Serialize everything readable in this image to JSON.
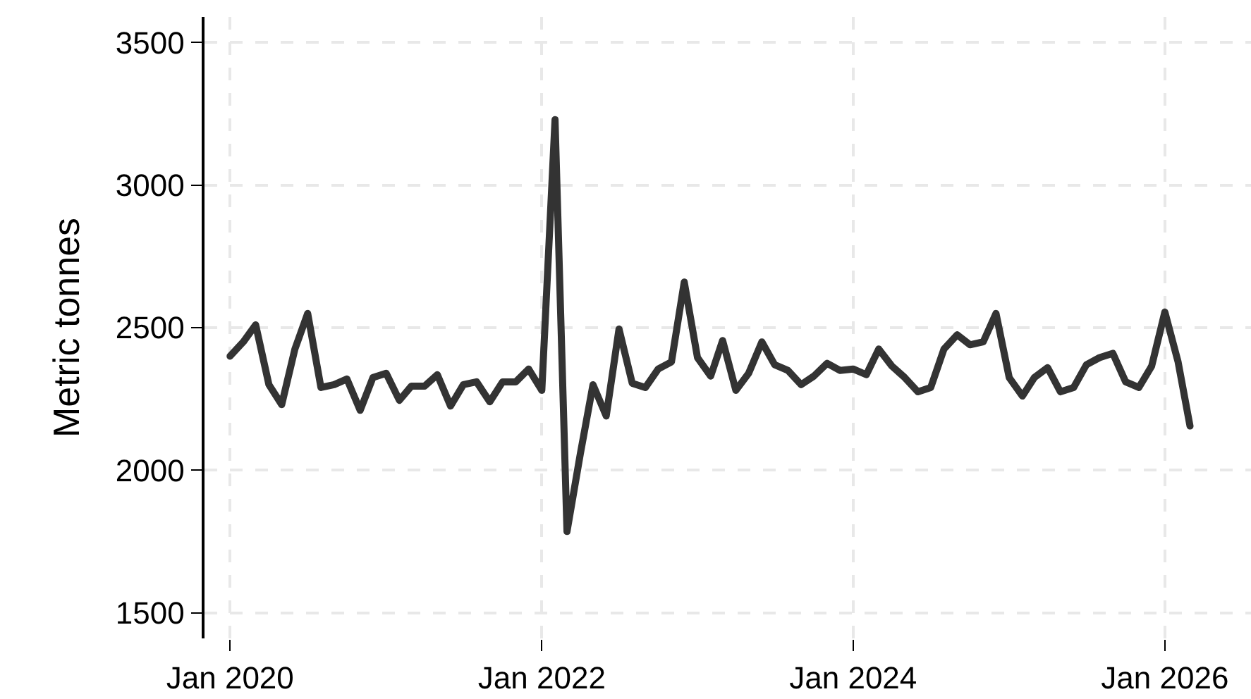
{
  "chart_data": {
    "type": "line",
    "ylabel": "Metric tonnes",
    "x": [
      "2020-01",
      "2020-02",
      "2020-03",
      "2020-04",
      "2020-05",
      "2020-06",
      "2020-07",
      "2020-08",
      "2020-09",
      "2020-10",
      "2020-11",
      "2020-12",
      "2021-01",
      "2021-02",
      "2021-03",
      "2021-04",
      "2021-05",
      "2021-06",
      "2021-07",
      "2021-08",
      "2021-09",
      "2021-10",
      "2021-11",
      "2021-12",
      "2022-01",
      "2022-02",
      "2022-03",
      "2022-04",
      "2022-05",
      "2022-06",
      "2022-07",
      "2022-08",
      "2022-09",
      "2022-10",
      "2022-11",
      "2022-12",
      "2023-01",
      "2023-02",
      "2023-03",
      "2023-04",
      "2023-05",
      "2023-06",
      "2023-07",
      "2023-08",
      "2023-09",
      "2023-10",
      "2023-11",
      "2023-12",
      "2024-01",
      "2024-02",
      "2024-03",
      "2024-04",
      "2024-05",
      "2024-06",
      "2024-07",
      "2024-08",
      "2024-09",
      "2024-10",
      "2024-11",
      "2024-12",
      "2025-01",
      "2025-02",
      "2025-03",
      "2025-04",
      "2025-05",
      "2025-06",
      "2025-07",
      "2025-08",
      "2025-09",
      "2025-10",
      "2025-11",
      "2025-12",
      "2026-01",
      "2026-02",
      "2026-03"
    ],
    "series": [
      {
        "color": "#333333",
        "values": [
          2400,
          2450,
          2510,
          2300,
          2230,
          2425,
          2550,
          2290,
          2300,
          2320,
          2210,
          2325,
          2340,
          2245,
          2295,
          2295,
          2335,
          2225,
          2300,
          2310,
          2240,
          2310,
          2310,
          2355,
          2280,
          3230,
          1785,
          2055,
          2300,
          2190,
          2495,
          2305,
          2290,
          2355,
          2380,
          2660,
          2395,
          2330,
          2455,
          2280,
          2340,
          2450,
          2370,
          2350,
          2300,
          2330,
          2375,
          2350,
          2355,
          2335,
          2425,
          2365,
          2325,
          2275,
          2290,
          2425,
          2475,
          2440,
          2450,
          2550,
          2325,
          2260,
          2325,
          2360,
          2275,
          2290,
          2370,
          2395,
          2410,
          2310,
          2290,
          2365,
          2555,
          2380,
          2155
        ]
      }
    ],
    "xlim": [
      "2019-11-02",
      "2026-07-22"
    ],
    "xticks": [
      {
        "value": "2020-01-01",
        "label": "Jan 2020"
      },
      {
        "value": "2022-01-01",
        "label": "Jan 2022"
      },
      {
        "value": "2024-01-01",
        "label": "Jan 2024"
      },
      {
        "value": "2026-01-01",
        "label": "Jan 2026"
      }
    ],
    "ylim": [
      1410,
      3590
    ],
    "yticks": [
      1500,
      2000,
      2500,
      3000,
      3500
    ],
    "grid": true,
    "marker": "none",
    "line_style": "solid"
  }
}
